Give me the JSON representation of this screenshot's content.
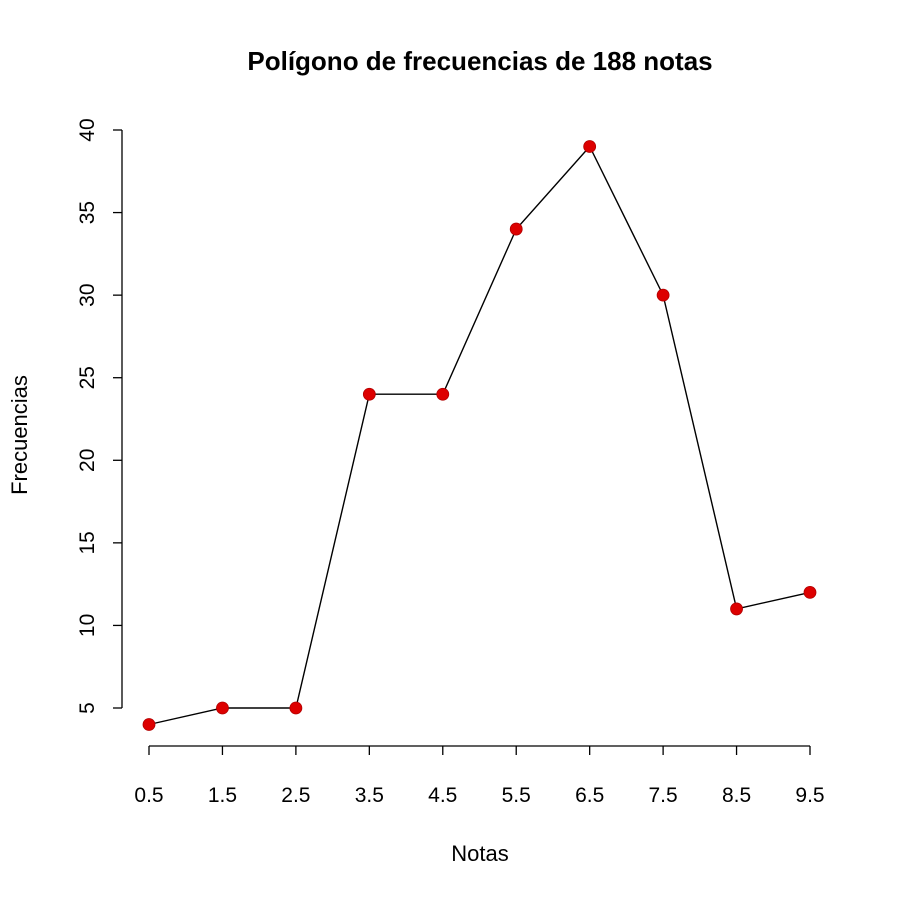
{
  "chart_data": {
    "type": "line",
    "title": "Polígono de frecuencias de 188 notas",
    "xlabel": "Notas",
    "ylabel": "Frecuencias",
    "x": [
      0.5,
      1.5,
      2.5,
      3.5,
      4.5,
      5.5,
      6.5,
      7.5,
      8.5,
      9.5
    ],
    "values": [
      4,
      5,
      5,
      24,
      24,
      34,
      39,
      30,
      11,
      12
    ],
    "x_ticks": [
      "0.5",
      "1.5",
      "2.5",
      "3.5",
      "4.5",
      "5.5",
      "6.5",
      "7.5",
      "8.5",
      "9.5"
    ],
    "y_ticks": [
      "5",
      "10",
      "15",
      "20",
      "25",
      "30",
      "35",
      "40"
    ],
    "xlim": [
      0.5,
      9.5
    ],
    "ylim": [
      5,
      40
    ],
    "grid": false,
    "colors": {
      "line": "#000000",
      "point": "#dd0000"
    }
  }
}
